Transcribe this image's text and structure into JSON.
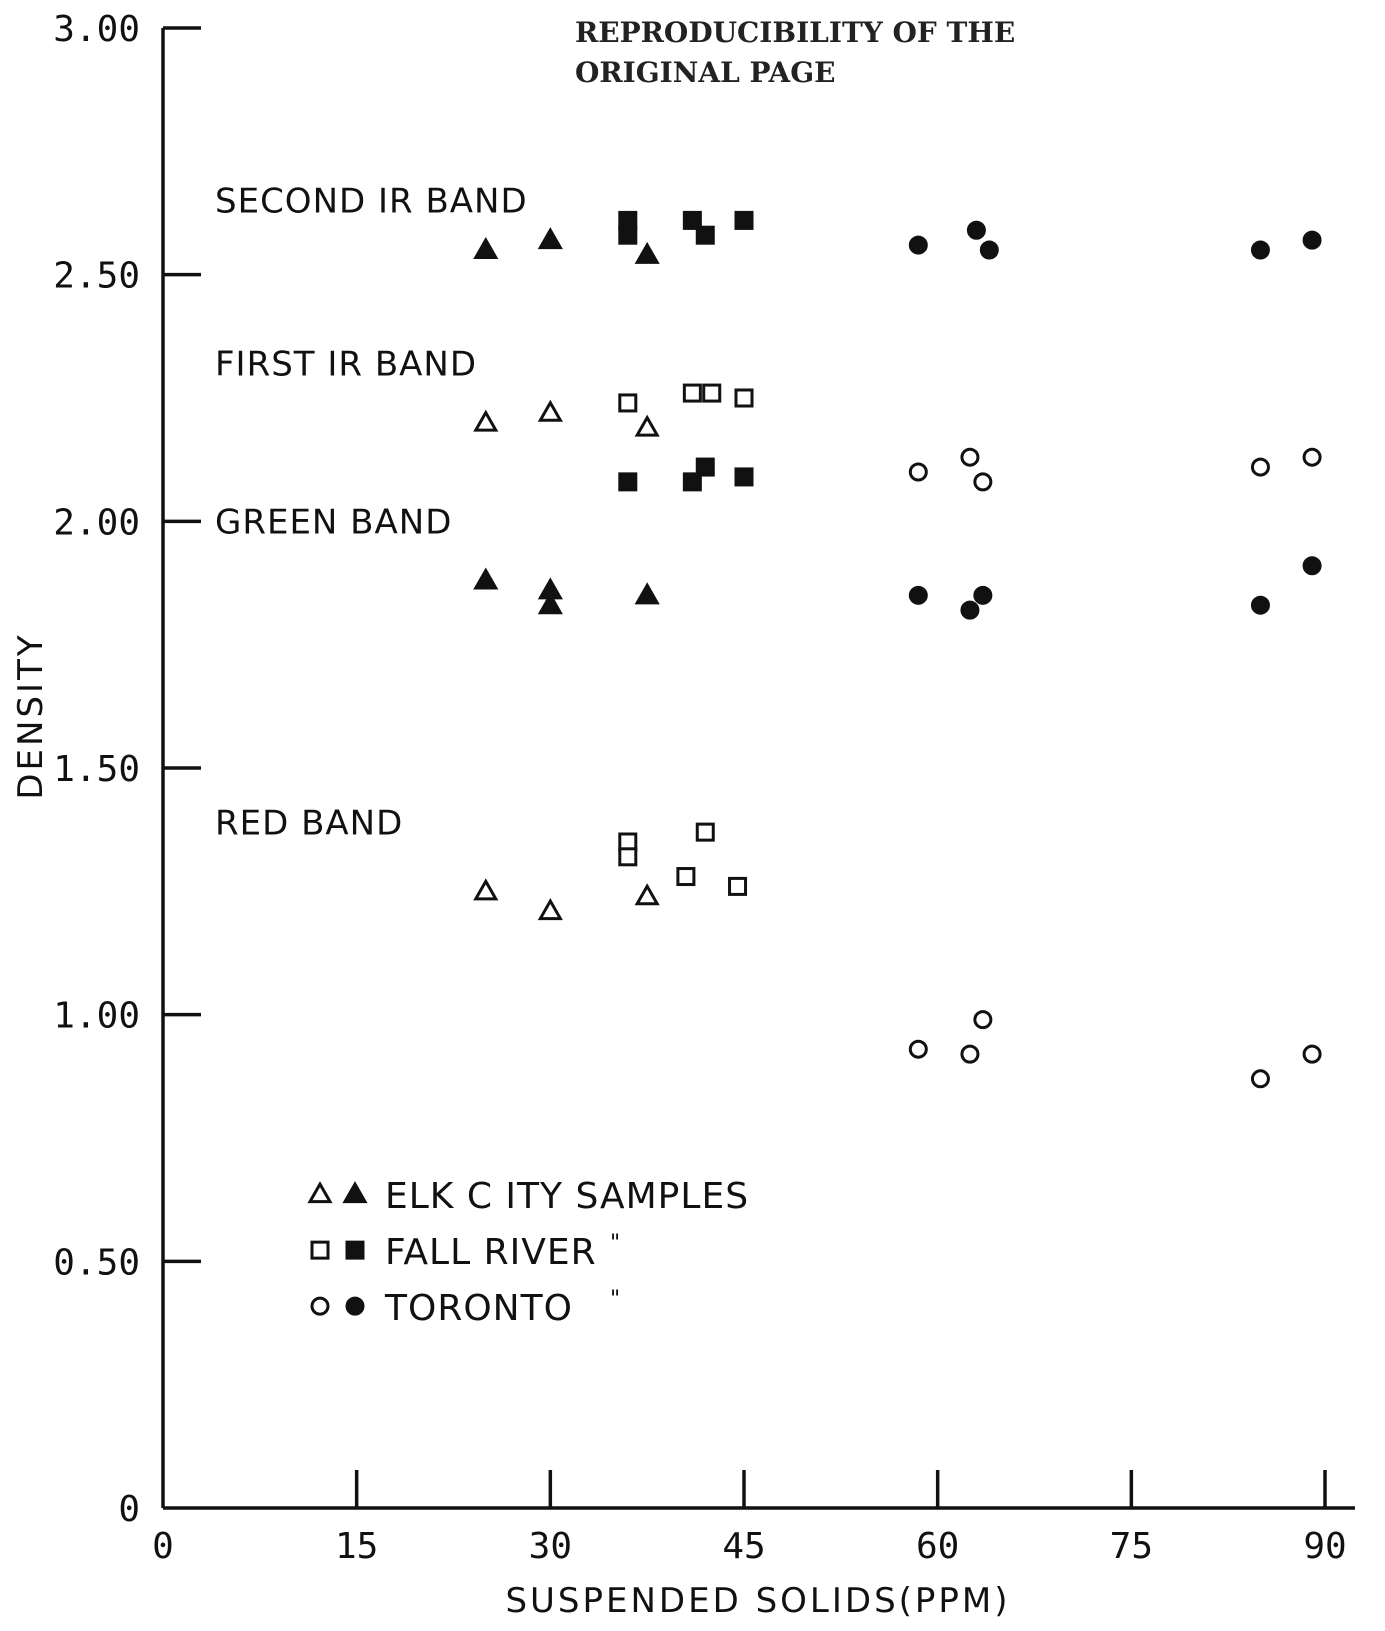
{
  "stamp": {
    "line1": "REPRODUCIBILITY OF THE",
    "line2": "ORIGINAL PAGE"
  },
  "chart_data": {
    "type": "scatter",
    "title": "",
    "xlabel": "SUSPENDED SOLIDS(PPM)",
    "ylabel": "DENSITY",
    "xlim": [
      0,
      90
    ],
    "ylim": [
      0,
      3.0
    ],
    "xticks": [
      0,
      15,
      30,
      45,
      60,
      75,
      90
    ],
    "xtick_labels": [
      "0",
      "15",
      "30",
      "45",
      "60",
      "75",
      "90"
    ],
    "yticks": [
      0,
      0.5,
      1.0,
      1.5,
      2.0,
      2.5,
      3.0
    ],
    "ytick_labels": [
      "0",
      "0.50",
      "1.00",
      "1.50",
      "2.00",
      "2.50",
      "3.00"
    ],
    "grid": false,
    "band_labels": [
      {
        "text": "SECOND IR BAND",
        "y": 2.65
      },
      {
        "text": "FIRST IR BAND",
        "y": 2.32
      },
      {
        "text": "GREEN BAND",
        "y": 2.0
      },
      {
        "text": "RED BAND",
        "y": 1.39
      }
    ],
    "legend": {
      "placement": "lower-left",
      "entries": [
        {
          "label": "ELK C ITY SAMPLES",
          "symbols": [
            "triangle-open",
            "triangle-filled"
          ],
          "ditto": ""
        },
        {
          "label": "FALL RIVER",
          "symbols": [
            "square-open",
            "square-filled"
          ],
          "ditto": "\""
        },
        {
          "label": "TORONTO",
          "symbols": [
            "circle-open",
            "circle-filled"
          ],
          "ditto": "\""
        }
      ]
    },
    "series": [
      {
        "site": "Elk City",
        "band": "Second IR",
        "marker": "triangle-filled",
        "points": [
          [
            25,
            2.55
          ],
          [
            30,
            2.57
          ],
          [
            37.5,
            2.54
          ]
        ]
      },
      {
        "site": "Fall River",
        "band": "Second IR",
        "marker": "square-filled",
        "points": [
          [
            36,
            2.61
          ],
          [
            36,
            2.58
          ],
          [
            41,
            2.61
          ],
          [
            42,
            2.58
          ],
          [
            45,
            2.61
          ]
        ]
      },
      {
        "site": "Toronto",
        "band": "Second IR",
        "marker": "circle-filled",
        "points": [
          [
            58.5,
            2.56
          ],
          [
            63,
            2.59
          ],
          [
            64,
            2.55
          ],
          [
            85,
            2.55
          ],
          [
            89,
            2.57
          ]
        ]
      },
      {
        "site": "Elk City",
        "band": "First IR",
        "marker": "triangle-open",
        "points": [
          [
            25,
            2.2
          ],
          [
            30,
            2.22
          ],
          [
            37.5,
            2.19
          ]
        ]
      },
      {
        "site": "Fall River",
        "band": "First IR",
        "marker": "square-open",
        "points": [
          [
            36,
            2.24
          ],
          [
            41,
            2.26
          ],
          [
            42.5,
            2.26
          ],
          [
            45,
            2.25
          ]
        ]
      },
      {
        "site": "Fall River",
        "band": "Green",
        "marker": "square-filled",
        "points": [
          [
            36,
            2.08
          ],
          [
            41,
            2.08
          ],
          [
            42,
            2.11
          ],
          [
            45,
            2.09
          ]
        ]
      },
      {
        "site": "Toronto",
        "band": "First IR",
        "marker": "circle-open",
        "points": [
          [
            58.5,
            2.1
          ],
          [
            62.5,
            2.13
          ],
          [
            63.5,
            2.08
          ],
          [
            85,
            2.11
          ],
          [
            89,
            2.13
          ]
        ]
      },
      {
        "site": "Elk City",
        "band": "Green",
        "marker": "triangle-filled",
        "points": [
          [
            25,
            1.88
          ],
          [
            30,
            1.86
          ],
          [
            30,
            1.83
          ],
          [
            37.5,
            1.85
          ]
        ]
      },
      {
        "site": "Toronto",
        "band": "Green",
        "marker": "circle-filled",
        "points": [
          [
            58.5,
            1.85
          ],
          [
            62.5,
            1.82
          ],
          [
            63.5,
            1.85
          ],
          [
            85,
            1.83
          ],
          [
            89,
            1.91
          ]
        ]
      },
      {
        "site": "Elk City",
        "band": "Red",
        "marker": "triangle-open",
        "points": [
          [
            25,
            1.25
          ],
          [
            30,
            1.21
          ],
          [
            37.5,
            1.24
          ]
        ]
      },
      {
        "site": "Fall River",
        "band": "Red",
        "marker": "square-open",
        "points": [
          [
            36,
            1.35
          ],
          [
            36,
            1.32
          ],
          [
            40.5,
            1.28
          ],
          [
            42,
            1.37
          ],
          [
            44.5,
            1.26
          ]
        ]
      },
      {
        "site": "Toronto",
        "band": "Red",
        "marker": "circle-open",
        "points": [
          [
            58.5,
            0.93
          ],
          [
            62.5,
            0.92
          ],
          [
            63.5,
            0.99
          ],
          [
            85,
            0.87
          ],
          [
            89,
            0.92
          ]
        ]
      }
    ]
  }
}
